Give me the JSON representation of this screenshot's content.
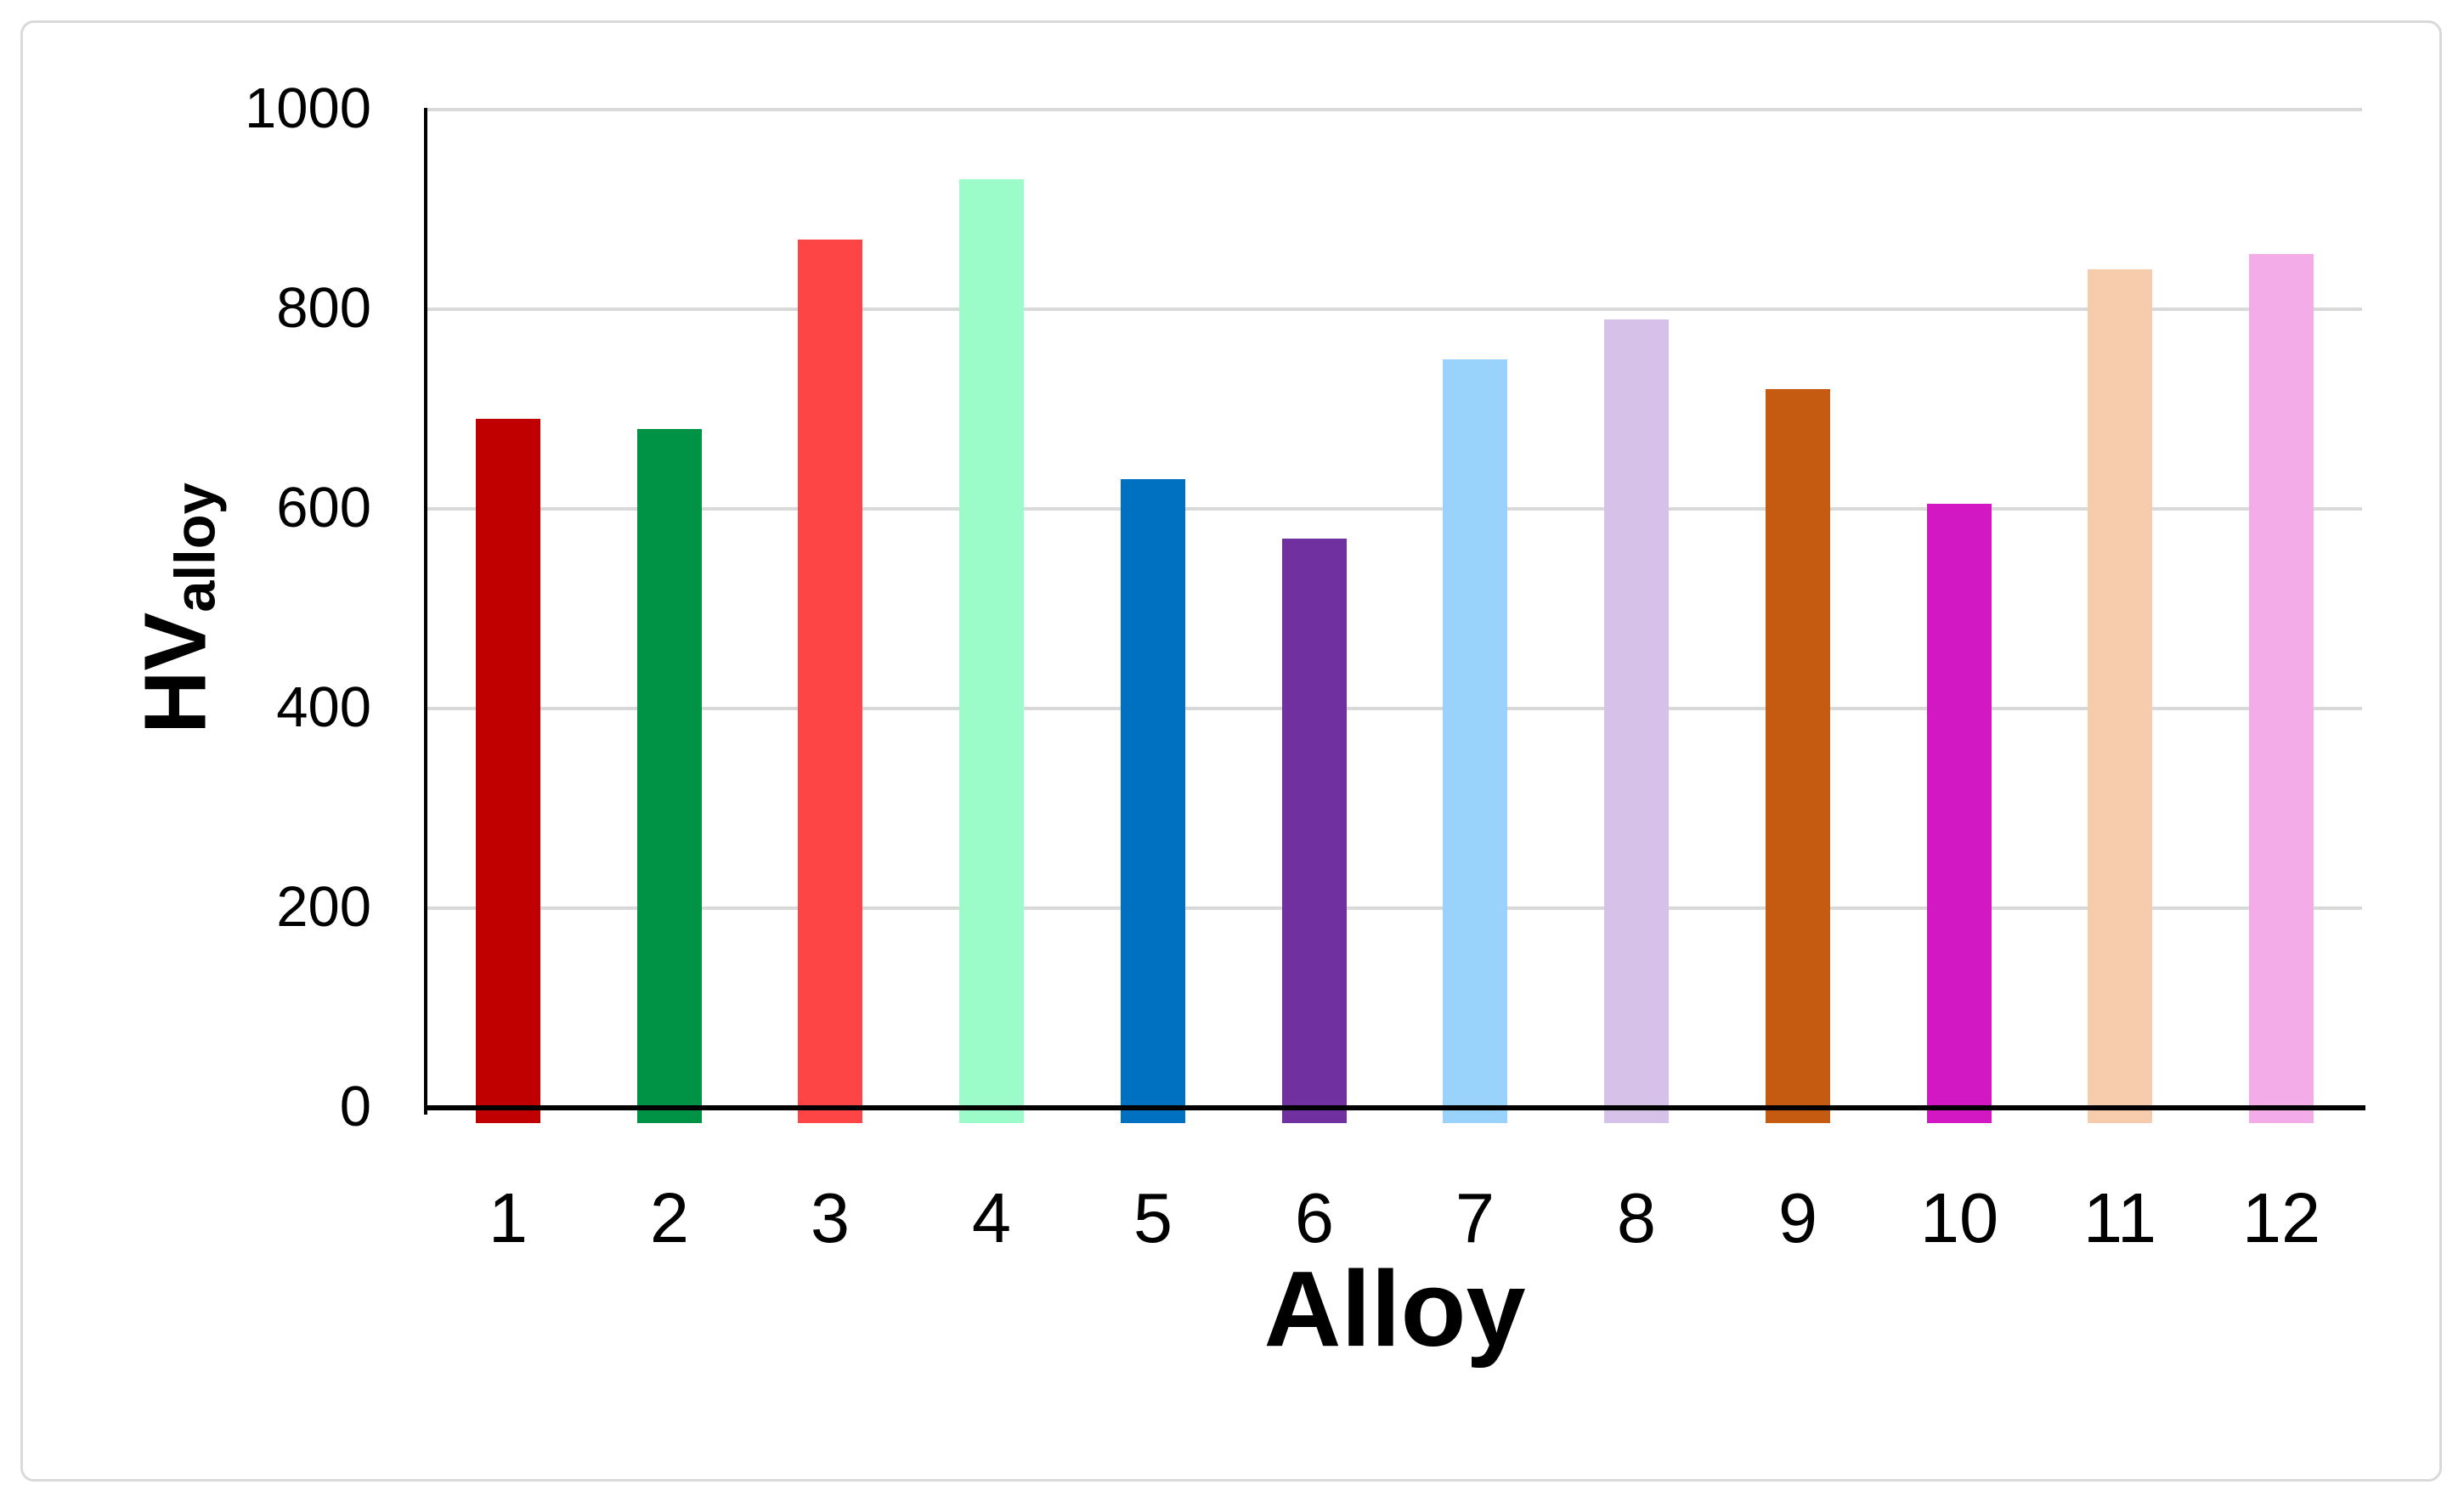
{
  "chart_data": {
    "type": "bar",
    "title": "",
    "xlabel": "Alloy",
    "ylabel_main": "HV",
    "ylabel_sub": "alloy",
    "categories": [
      "1",
      "2",
      "3",
      "4",
      "5",
      "6",
      "7",
      "8",
      "9",
      "10",
      "11",
      "12"
    ],
    "values": [
      690,
      680,
      870,
      930,
      630,
      570,
      750,
      790,
      720,
      605,
      840,
      855
    ],
    "bar_colors": [
      "#C00000",
      "#009245",
      "#FD4545",
      "#9CFCC9",
      "#0070C0",
      "#7030A0",
      "#99D2FA",
      "#D6C2E8",
      "#C55A11",
      "#D118C2",
      "#F7CCAC",
      "#F4ACE8"
    ],
    "ylim": [
      0,
      1000
    ],
    "yticks": [
      0,
      200,
      400,
      600,
      800,
      1000
    ],
    "grid": "horizontal",
    "legend": "none",
    "gridline_color": "#D9D9D9",
    "axis_color": "#000000",
    "border_color": "#D9D9D9",
    "background_color": "#FFFFFF"
  }
}
